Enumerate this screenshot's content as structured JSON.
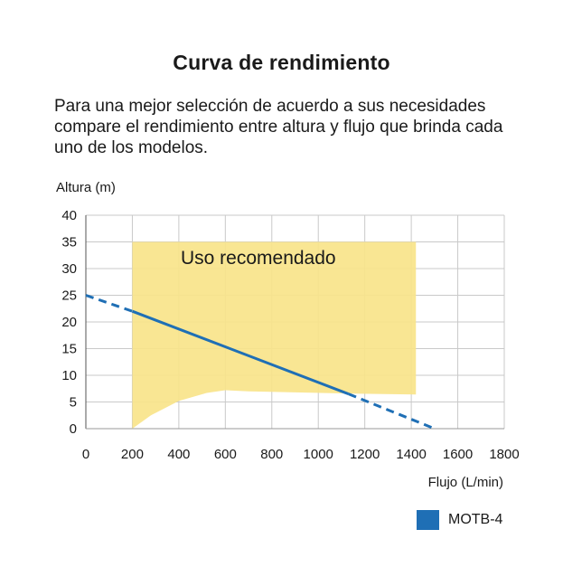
{
  "title": "Curva de rendimiento",
  "description": "Para una mejor selección de acuerdo a sus necesidades compare el rendimiento entre altura y flujo que brinda cada uno de los modelos.",
  "chart_data": {
    "type": "line",
    "ylabel": "Altura (m)",
    "xlabel": "Flujo (L/min)",
    "xlim": [
      0,
      1800
    ],
    "ylim": [
      0,
      40
    ],
    "xticks": [
      0,
      200,
      400,
      600,
      800,
      1000,
      1200,
      1400,
      1600,
      1800
    ],
    "yticks": [
      0,
      5,
      10,
      15,
      20,
      25,
      30,
      35,
      40
    ],
    "grid": true,
    "legend_position": "bottom-right",
    "recommended_zone": {
      "label": "Uso recomendado",
      "color": "#f8e48a",
      "top": 35,
      "upper": [
        [
          200,
          35
        ],
        [
          1420,
          35
        ]
      ],
      "lower": [
        [
          200,
          0
        ],
        [
          280,
          2.5
        ],
        [
          400,
          5.2
        ],
        [
          520,
          6.7
        ],
        [
          600,
          7.2
        ],
        [
          700,
          7.0
        ],
        [
          900,
          6.8
        ],
        [
          1100,
          6.6
        ],
        [
          1420,
          6.4
        ]
      ]
    },
    "series": [
      {
        "name": "MOTB-4",
        "color": "#1f6fb5",
        "solid": [
          [
            200,
            22
          ],
          [
            1130,
            6.5
          ]
        ],
        "dashed_before": [
          [
            0,
            25
          ],
          [
            200,
            22
          ]
        ],
        "dashed_after": [
          [
            1130,
            6.5
          ],
          [
            1500,
            0
          ]
        ]
      }
    ]
  }
}
